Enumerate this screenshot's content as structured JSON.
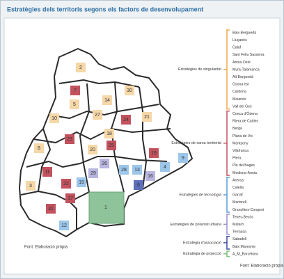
{
  "title": "Estratègies dels territoris segons els factors de desenvolupament",
  "map": {
    "labels": [
      "2",
      "7",
      "5",
      "30",
      "14",
      "10",
      "27",
      "24",
      "21",
      "23",
      "18",
      "25",
      "20",
      "8",
      "19",
      "26",
      "29",
      "28",
      "13",
      "9",
      "4",
      "16",
      "6",
      "11",
      "15",
      "22",
      "3",
      "17",
      "31",
      "1",
      "12"
    ],
    "source": "Font: Elaboració pròpia"
  },
  "legend": {
    "groups": [
      {
        "name": "Estratègies de singularitat",
        "items": [
          "Baix Berguedà",
          "Lluçanès",
          "Calaf",
          "Sant Feliu Sasserra",
          "Anoia Oest",
          "Mura-Talamanca",
          "Alt Berguedà",
          "Osona est",
          "Cardona",
          "Moianès",
          "Vall del Ges"
        ]
      },
      {
        "name": "Estratègies de xarxa territorial",
        "items": [
          "Conca d'Òdena",
          "Riera de Caldes",
          "Berga",
          "Plana de Vic",
          "Montseny",
          "Vilafranca",
          "Piera",
          "Pla del Bages",
          "Mediona-Anoia"
        ]
      },
      {
        "name": "Estratègies de tecnologia",
        "items": [
          "Arenys",
          "Calella",
          "Garraf",
          "Martorell",
          "Granollers-Congost"
        ]
      },
      {
        "name": "Estratègies de polaritat urbana",
        "items": [
          "Tenes-Besòs",
          "Mataró",
          "Terrassa"
        ]
      },
      {
        "name": "Estratègia d'associació",
        "items": [
          "Sabadell",
          "Baix Maresme"
        ]
      },
      {
        "name": "Estratègia de projecció",
        "items": [
          "A_M_Barcelona"
        ]
      }
    ],
    "source": "Font: Elaboració pròpia"
  }
}
